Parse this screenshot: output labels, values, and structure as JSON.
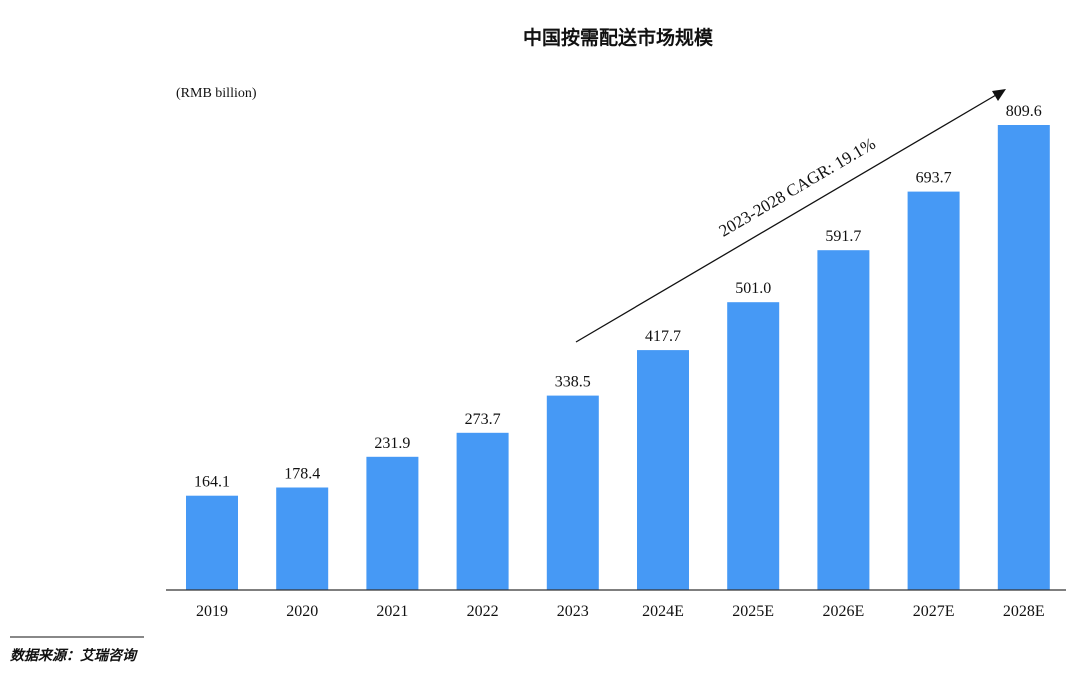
{
  "chart_data": {
    "type": "bar",
    "title": "中国按需配送市场规模",
    "unit_label": "(RMB billion)",
    "categories": [
      "2019",
      "2020",
      "2021",
      "2022",
      "2023",
      "2024E",
      "2025E",
      "2026E",
      "2027E",
      "2028E"
    ],
    "values": [
      164.1,
      178.4,
      231.9,
      273.7,
      338.5,
      417.7,
      501.0,
      591.7,
      693.7,
      809.6
    ],
    "value_labels": [
      "164.1",
      "178.4",
      "231.9",
      "273.7",
      "338.5",
      "417.7",
      "501.0",
      "591.7",
      "693.7",
      "809.6"
    ],
    "ylim": [
      0,
      809.6
    ],
    "grid": false,
    "bar_color": "#4699F5",
    "annotation": "2023-2028 CAGR: 19.1%"
  },
  "source_note": "数据来源：艾瑞咨询"
}
